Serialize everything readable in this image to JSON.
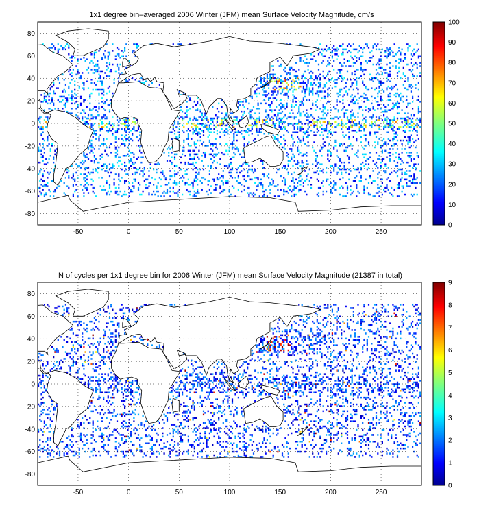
{
  "chart_data": [
    {
      "type": "heatmap",
      "title": "1x1 degree bin–averaged 2006 Winter (JFM) mean Surface Velocity Magnitude, cm/s",
      "xlabel": "",
      "ylabel": "",
      "xlim": [
        -90,
        290
      ],
      "ylim": [
        -90,
        90
      ],
      "x_ticks": [
        "-50",
        "0",
        "50",
        "100",
        "150",
        "200",
        "250"
      ],
      "y_ticks": [
        "80",
        "60",
        "40",
        "20",
        "0",
        "-20",
        "-40",
        "-60",
        "-80"
      ],
      "grid": true,
      "colorbar": {
        "min": 0,
        "max": 100,
        "ticks": [
          "100",
          "90",
          "80",
          "70",
          "60",
          "50",
          "40",
          "30",
          "20",
          "10",
          "0"
        ]
      }
    },
    {
      "type": "heatmap",
      "title": "N of cycles per 1x1 degree bin for 2006 Winter (JFM) mean Surface Velocity Magnitude (21387 in total)",
      "xlabel": "",
      "ylabel": "",
      "xlim": [
        -90,
        290
      ],
      "ylim": [
        -90,
        90
      ],
      "x_ticks": [
        "-50",
        "0",
        "50",
        "100",
        "150",
        "200",
        "250"
      ],
      "y_ticks": [
        "80",
        "60",
        "40",
        "20",
        "0",
        "-20",
        "-40",
        "-60",
        "-80"
      ],
      "grid": true,
      "colorbar": {
        "min": 0,
        "max": 9,
        "ticks": [
          "9",
          "8",
          "7",
          "6",
          "5",
          "4",
          "3",
          "2",
          "1",
          "0"
        ]
      }
    }
  ],
  "colors": {
    "land": "#ffffff",
    "coast": "#000000",
    "colormap": "jet"
  }
}
